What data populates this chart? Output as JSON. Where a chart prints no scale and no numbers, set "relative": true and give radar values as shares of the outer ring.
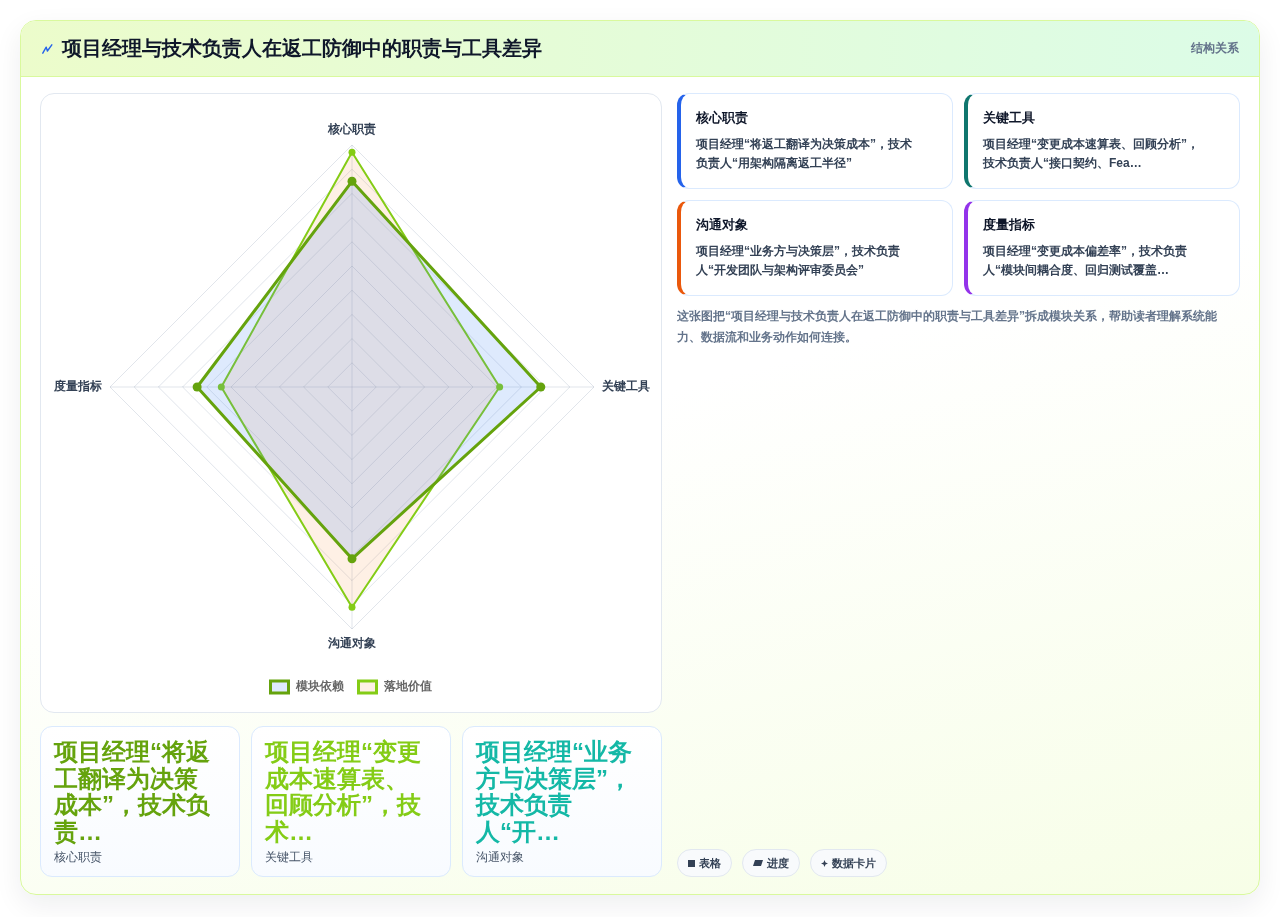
{
  "chart_data": [
    {
      "type": "other",
      "title": "项目经理与技术负责人在返工防御中的职责与工具差异",
      "annotations": [
        "结构关系"
      ]
    },
    {
      "type": "radar",
      "categories": [
        "核心职责",
        "关键工具",
        "沟通对象",
        "度量指标"
      ],
      "relative": true,
      "series": [
        {
          "name": "模块依赖",
          "color": "#65a30d",
          "values": [
            0.85,
            0.78,
            0.71,
            0.64
          ]
        },
        {
          "name": "落地价值",
          "color": "#84cc16",
          "values": [
            0.97,
            0.61,
            0.91,
            0.54
          ]
        }
      ],
      "grid": true,
      "legend": "bottom",
      "marker": "circle"
    },
    {
      "type": "other",
      "title": "核心职责",
      "annotations": [
        "项目经理“将返工翻译为决策成本”，技术负责人“用架构隔离返工半径”"
      ],
      "color": "#2563eb"
    },
    {
      "type": "other",
      "title": "关键工具",
      "annotations": [
        "项目经理“变更成本速算表、回顾分析”，技术负责人“接口契约、Fea…"
      ],
      "color": "#0f766e"
    },
    {
      "type": "other",
      "title": "沟通对象",
      "annotations": [
        "项目经理“业务方与决策层”，技术负责人“开发团队与架构评审委员会”"
      ],
      "color": "#ea580c"
    },
    {
      "type": "other",
      "title": "度量指标",
      "annotations": [
        "项目经理“变更成本偏差率”，技术负责人“模块间耦合度、回归测试覆盖…"
      ],
      "color": "#9333ea"
    },
    {
      "type": "other",
      "annotations": [
        "这张图把“项目经理与技术负责人在返工防御中的职责与工具差异”拆成模块关系，帮助读者理解系统能力、数据流和业务动作如何连接。"
      ]
    },
    {
      "type": "other",
      "title": "项目经理“将返工翻译为决策成本”，技术负责…",
      "subtitle": "核心职责",
      "color": "#65a30d"
    },
    {
      "type": "other",
      "title": "项目经理“变更成本速算表、回顾分析”，技术…",
      "subtitle": "关键工具",
      "color": "#84cc16"
    },
    {
      "type": "other",
      "title": "项目经理“业务方与决策层”，技术负责人“开…",
      "subtitle": "沟通对象",
      "color": "#14b8a6"
    },
    {
      "type": "other",
      "annotations": [
        "表格",
        "进度",
        "数据卡片"
      ]
    }
  ]
}
